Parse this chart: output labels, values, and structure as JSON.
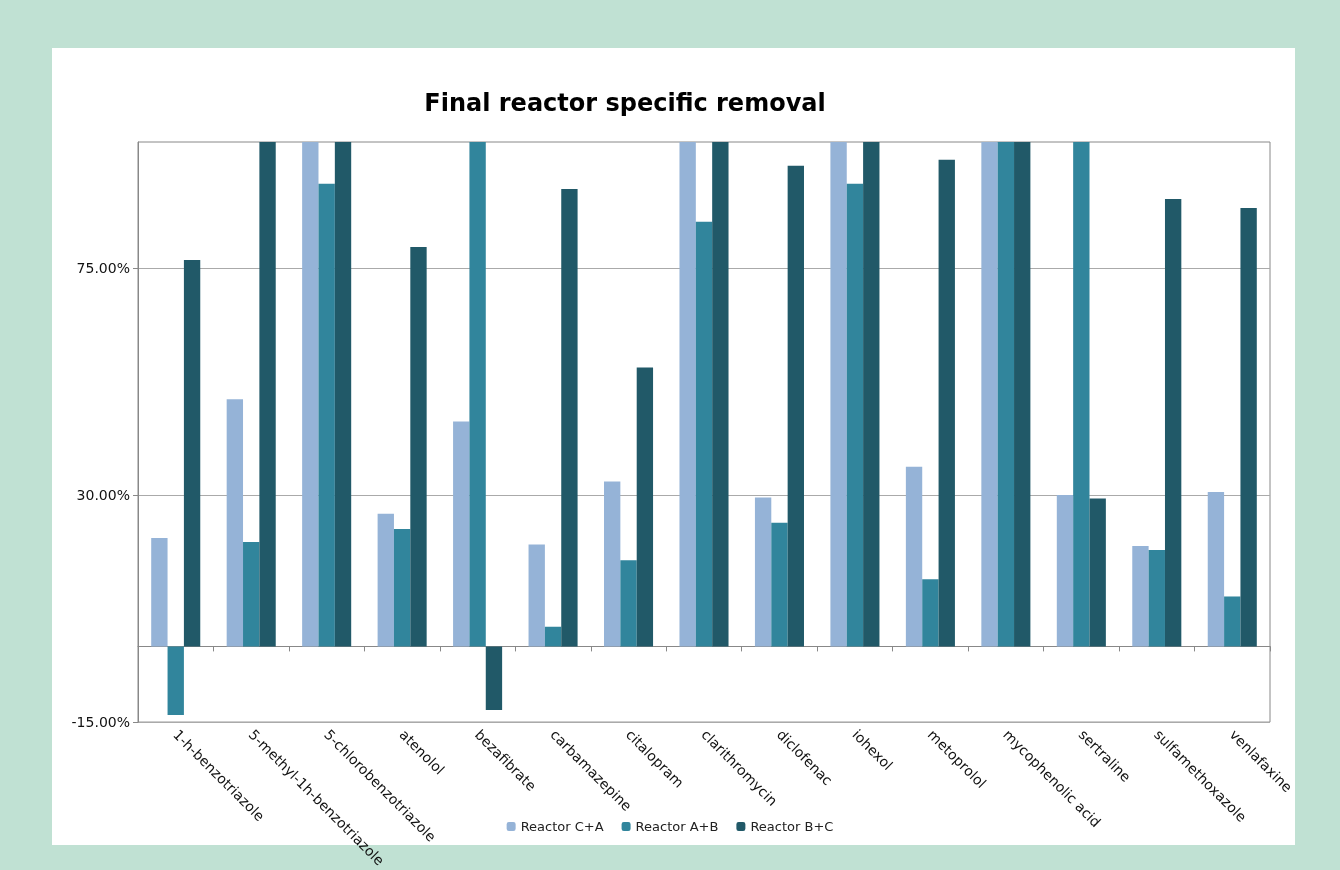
{
  "chart_data": {
    "type": "bar",
    "title": "Final reactor specific removal",
    "categories": [
      "1-h-benzotriazole",
      "5-methyl-1h-benzotriazole",
      "5-chlorobenzotriazole",
      "atenolol",
      "bezafibrate",
      "carbamazepine",
      "citalopram",
      "clarithromycin",
      "diclofenac",
      "iohexol",
      "metoprolol",
      "mycophenolic acid",
      "sertraline",
      "sulfamethoxazole",
      "venlafaxine"
    ],
    "series": [
      {
        "name": "Reactor C+A",
        "color": "#95b3d7",
        "values": [
          21.5,
          49.0,
          100,
          26.3,
          44.6,
          20.2,
          32.7,
          100,
          29.5,
          100,
          35.6,
          100,
          30.0,
          19.9,
          30.6
        ]
      },
      {
        "name": "Reactor A+B",
        "color": "#31859c",
        "values": [
          -13.6,
          20.7,
          91.7,
          23.3,
          100,
          3.9,
          17.1,
          84.2,
          24.5,
          91.7,
          13.3,
          100,
          100,
          19.1,
          9.9
        ]
      },
      {
        "name": "Reactor B+C",
        "color": "#215968",
        "values": [
          76.6,
          100,
          100,
          79.2,
          -12.6,
          90.7,
          55.3,
          100,
          95.3,
          100,
          96.5,
          100,
          29.3,
          88.7,
          86.9
        ]
      }
    ],
    "ylim": [
      -15,
      100
    ],
    "yticks": [
      {
        "value": -15,
        "label": "-15.00%"
      },
      {
        "value": 30,
        "label": "30.00%"
      },
      {
        "value": 75,
        "label": "75.00%"
      }
    ],
    "grid": "y",
    "legend": "bottom"
  }
}
